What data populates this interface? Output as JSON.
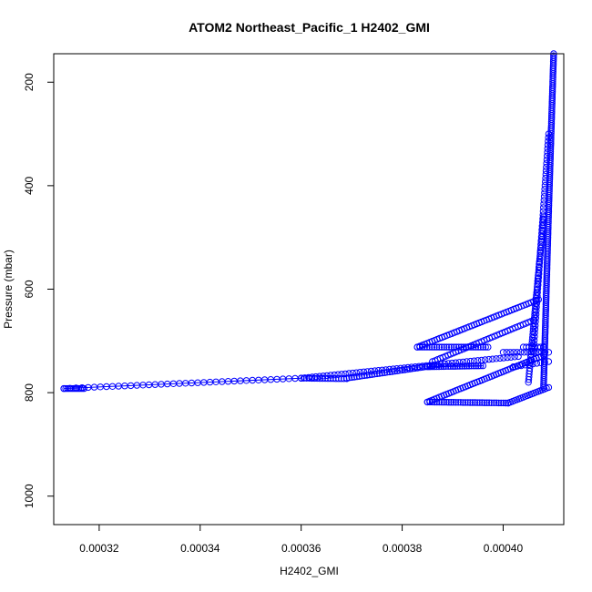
{
  "chart_data": {
    "type": "scatter",
    "title": "ATOM2 Northeast_Pacific_1 H2402_GMI",
    "xlabel": "H2402_GMI",
    "ylabel": "Pressure (mbar)",
    "xlim": [
      0.000311,
      0.000412
    ],
    "ylim": [
      1055,
      145
    ],
    "y_axis_reversed": true,
    "grid": false,
    "legend": "none",
    "marker": "open-circle",
    "color": "#0000FF",
    "x_ticks": [
      0.00032,
      0.00034,
      0.00036,
      0.00038,
      0.0004
    ],
    "x_tick_labels": [
      "0.00032",
      "0.00034",
      "0.00036",
      "0.00038",
      "0.00040"
    ],
    "y_ticks": [
      200,
      400,
      600,
      800,
      1000
    ],
    "y_tick_labels": [
      "200",
      "400",
      "600",
      "800",
      "1000"
    ],
    "segments": [
      {
        "from": [
          0.000313,
          792
        ],
        "to": [
          0.00036,
          772
        ],
        "n": 40,
        "line": true
      },
      {
        "from": [
          0.000313,
          792
        ],
        "to": [
          0.000317,
          792
        ],
        "n": 12,
        "line": false
      },
      {
        "from": [
          0.00036,
          772
        ],
        "to": [
          0.000369,
          773
        ],
        "n": 18,
        "line": false
      },
      {
        "from": [
          0.00036,
          772
        ],
        "to": [
          0.000403,
          730
        ],
        "n": 60,
        "line": false
      },
      {
        "from": [
          0.000369,
          772
        ],
        "to": [
          0.000386,
          748
        ],
        "n": 35,
        "line": false
      },
      {
        "from": [
          0.000385,
          750
        ],
        "to": [
          0.000396,
          748
        ],
        "n": 25,
        "line": true
      },
      {
        "from": [
          0.000383,
          712
        ],
        "to": [
          0.000397,
          712
        ],
        "n": 30,
        "line": false
      },
      {
        "from": [
          0.000383,
          712
        ],
        "to": [
          0.000407,
          620
        ],
        "n": 50,
        "line": false
      },
      {
        "from": [
          0.000386,
          740
        ],
        "to": [
          0.000406,
          660
        ],
        "n": 40,
        "line": false
      },
      {
        "from": [
          0.000385,
          818
        ],
        "to": [
          0.000401,
          820
        ],
        "n": 35,
        "line": false
      },
      {
        "from": [
          0.000385,
          818
        ],
        "to": [
          0.000408,
          728
        ],
        "n": 50,
        "line": false
      },
      {
        "from": [
          0.000401,
          820
        ],
        "to": [
          0.000409,
          790
        ],
        "n": 20,
        "line": false
      },
      {
        "from": [
          0.000404,
          712
        ],
        "to": [
          0.000408,
          712
        ],
        "n": 8,
        "line": false
      },
      {
        "from": [
          0.0004,
          722
        ],
        "to": [
          0.000409,
          722
        ],
        "n": 14,
        "line": false
      },
      {
        "from": [
          0.000402,
          750
        ],
        "to": [
          0.000409,
          740
        ],
        "n": 10,
        "line": false
      },
      {
        "from": [
          0.000408,
          790
        ],
        "to": [
          0.000409,
          450
        ],
        "n": 90,
        "line": false
      },
      {
        "from": [
          0.000409,
          450
        ],
        "to": [
          0.00041,
          145
        ],
        "n": 80,
        "line": false
      },
      {
        "from": [
          0.000405,
          780
        ],
        "to": [
          0.000408,
          460
        ],
        "n": 60,
        "line": false
      },
      {
        "from": [
          0.000406,
          720
        ],
        "to": [
          0.000409,
          300
        ],
        "n": 60,
        "line": false
      }
    ]
  }
}
